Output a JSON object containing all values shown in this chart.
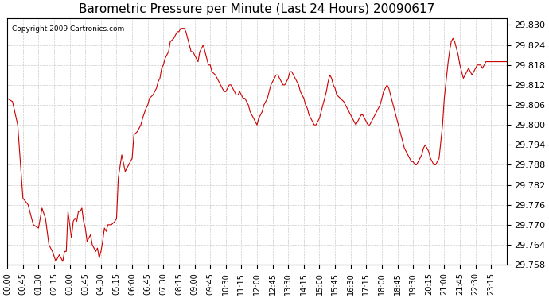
{
  "title": "Barometric Pressure per Minute (Last 24 Hours) 20090617",
  "copyright_text": "Copyright 2009 Cartronics.com",
  "line_color": "#cc0000",
  "background_color": "#ffffff",
  "grid_color": "#cccccc",
  "ylim": [
    29.758,
    29.832
  ],
  "yticks": [
    29.758,
    29.764,
    29.77,
    29.776,
    29.782,
    29.788,
    29.794,
    29.8,
    29.806,
    29.812,
    29.818,
    29.824,
    29.83
  ],
  "xtick_labels": [
    "00:00",
    "00:45",
    "01:30",
    "02:15",
    "03:00",
    "03:45",
    "04:30",
    "05:15",
    "06:00",
    "06:45",
    "07:30",
    "08:15",
    "09:00",
    "09:45",
    "10:30",
    "11:15",
    "12:00",
    "12:45",
    "13:30",
    "14:15",
    "15:00",
    "15:45",
    "16:30",
    "17:15",
    "18:00",
    "18:45",
    "19:30",
    "20:15",
    "21:00",
    "21:45",
    "22:30",
    "23:15"
  ],
  "waypoints_x": [
    0,
    15,
    30,
    45,
    60,
    75,
    90,
    100,
    110,
    120,
    130,
    140,
    150,
    155,
    160,
    165,
    170,
    175,
    180,
    185,
    190,
    195,
    200,
    205,
    210,
    215,
    220,
    225,
    230,
    235,
    240,
    245,
    250,
    255,
    260,
    265,
    270,
    275,
    280,
    285,
    290,
    300,
    310,
    315,
    320,
    330,
    340,
    345,
    350,
    355,
    360,
    365,
    375,
    385,
    390,
    400,
    405,
    410,
    420,
    430,
    435,
    440,
    445,
    450,
    455,
    460,
    465,
    470,
    480,
    485,
    490,
    495,
    500,
    505,
    510,
    515,
    520,
    525,
    530,
    535,
    540,
    545,
    550,
    555,
    560,
    565,
    570,
    575,
    580,
    585,
    590,
    600,
    605,
    610,
    615,
    620,
    625,
    630,
    635,
    640,
    645,
    650,
    655,
    660,
    665,
    670,
    675,
    680,
    685,
    690,
    695,
    700,
    705,
    710,
    715,
    720,
    725,
    730,
    735,
    740,
    745,
    750,
    755,
    760,
    765,
    770,
    775,
    780,
    785,
    790,
    795,
    800,
    805,
    810,
    815,
    820,
    825,
    830,
    835,
    840,
    845,
    850,
    855,
    860,
    865,
    870,
    875,
    880,
    885,
    890,
    895,
    900,
    905,
    910,
    915,
    920,
    925,
    930,
    935,
    940,
    945,
    950,
    960,
    970,
    975,
    980,
    985,
    990,
    995,
    1000,
    1005,
    1010,
    1015,
    1020,
    1025,
    1030,
    1035,
    1040,
    1045,
    1050,
    1055,
    1060,
    1065,
    1070,
    1075,
    1080,
    1085,
    1090,
    1095,
    1100,
    1105,
    1110,
    1115,
    1120,
    1125,
    1130,
    1135,
    1140,
    1145,
    1150,
    1155,
    1160,
    1165,
    1170,
    1175,
    1180,
    1185,
    1190,
    1195,
    1200,
    1205,
    1210,
    1215,
    1220,
    1225,
    1230,
    1235,
    1240,
    1245,
    1255,
    1260,
    1265,
    1270,
    1275,
    1280,
    1285,
    1290,
    1295,
    1300,
    1305,
    1310,
    1315,
    1320,
    1325,
    1330,
    1335,
    1340,
    1345,
    1350,
    1355,
    1360,
    1365,
    1370,
    1375,
    1380,
    1385,
    1390,
    1395,
    1400,
    1405,
    1410,
    1415,
    1420,
    1425,
    1430,
    1435,
    1440
  ],
  "waypoints_y": [
    29.808,
    29.807,
    29.8,
    29.778,
    29.776,
    29.77,
    29.769,
    29.775,
    29.772,
    29.764,
    29.762,
    29.759,
    29.761,
    29.76,
    29.759,
    29.762,
    29.762,
    29.774,
    29.77,
    29.766,
    29.771,
    29.772,
    29.771,
    29.774,
    29.774,
    29.775,
    29.771,
    29.769,
    29.765,
    29.766,
    29.767,
    29.764,
    29.763,
    29.762,
    29.763,
    29.76,
    29.762,
    29.765,
    29.769,
    29.768,
    29.77,
    29.77,
    29.771,
    29.772,
    29.784,
    29.791,
    29.786,
    29.787,
    29.788,
    29.789,
    29.79,
    29.797,
    29.798,
    29.8,
    29.802,
    29.805,
    29.806,
    29.808,
    29.809,
    29.811,
    29.813,
    29.814,
    29.817,
    29.818,
    29.82,
    29.821,
    29.822,
    29.825,
    29.826,
    29.827,
    29.828,
    29.828,
    29.829,
    29.829,
    29.829,
    29.828,
    29.826,
    29.824,
    29.822,
    29.822,
    29.821,
    29.82,
    29.819,
    29.822,
    29.823,
    29.824,
    29.822,
    29.82,
    29.818,
    29.818,
    29.816,
    29.815,
    29.814,
    29.813,
    29.812,
    29.811,
    29.81,
    29.81,
    29.811,
    29.812,
    29.812,
    29.811,
    29.81,
    29.809,
    29.809,
    29.81,
    29.809,
    29.808,
    29.808,
    29.807,
    29.806,
    29.804,
    29.803,
    29.802,
    29.801,
    29.8,
    29.802,
    29.803,
    29.804,
    29.806,
    29.807,
    29.808,
    29.81,
    29.812,
    29.813,
    29.814,
    29.815,
    29.815,
    29.814,
    29.813,
    29.812,
    29.812,
    29.813,
    29.814,
    29.816,
    29.816,
    29.815,
    29.814,
    29.813,
    29.812,
    29.81,
    29.809,
    29.808,
    29.806,
    29.805,
    29.803,
    29.802,
    29.801,
    29.8,
    29.8,
    29.801,
    29.802,
    29.804,
    29.806,
    29.808,
    29.81,
    29.813,
    29.815,
    29.814,
    29.812,
    29.811,
    29.809,
    29.808,
    29.807,
    29.806,
    29.805,
    29.804,
    29.803,
    29.802,
    29.801,
    29.8,
    29.801,
    29.802,
    29.803,
    29.803,
    29.802,
    29.801,
    29.8,
    29.8,
    29.801,
    29.802,
    29.803,
    29.804,
    29.805,
    29.806,
    29.808,
    29.81,
    29.811,
    29.812,
    29.811,
    29.809,
    29.807,
    29.805,
    29.803,
    29.801,
    29.799,
    29.797,
    29.795,
    29.793,
    29.792,
    29.791,
    29.79,
    29.789,
    29.789,
    29.788,
    29.788,
    29.789,
    29.79,
    29.791,
    29.793,
    29.794,
    29.793,
    29.792,
    29.79,
    29.789,
    29.788,
    29.788,
    29.789,
    29.79,
    29.8,
    29.808,
    29.813,
    29.818,
    29.822,
    29.825,
    29.826,
    29.825,
    29.823,
    29.821,
    29.818,
    29.816,
    29.814,
    29.815,
    29.816,
    29.817,
    29.816,
    29.815,
    29.816,
    29.817,
    29.818,
    29.818,
    29.818,
    29.817,
    29.818,
    29.819,
    29.819,
    29.819,
    29.819,
    29.819,
    29.819,
    29.819,
    29.819,
    29.819,
    29.819,
    29.819,
    29.819,
    29.819
  ]
}
